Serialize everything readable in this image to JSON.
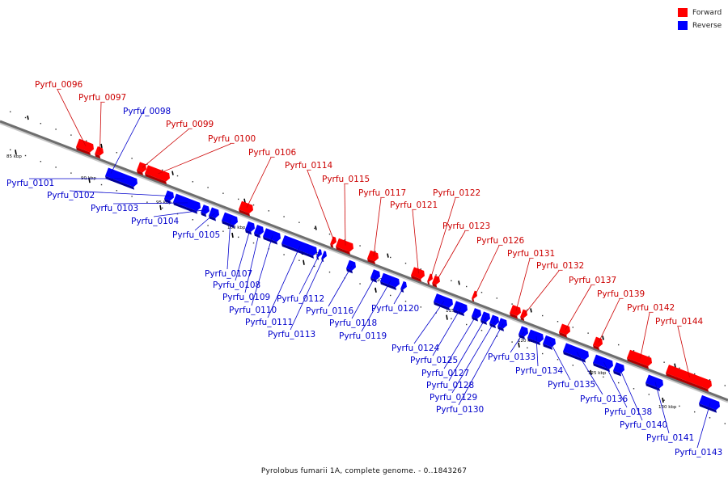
{
  "legend": {
    "forward_label": "Forward",
    "reverse_label": "Reverse",
    "forward_color": "#ff0000",
    "reverse_color": "#0000ff"
  },
  "caption": "Pyrolobus fumarii 1A, complete genome. - 0..1843267",
  "ruler_labels": [
    "85 kbp",
    "90 kbp",
    "95 kbp",
    "100 kbp",
    "105 kbp",
    "110 kbp",
    "115 kbp",
    "120 kbp",
    "125 kbp",
    "130 kbp"
  ],
  "genes": [
    {
      "name": "Pyrfu_0096",
      "strand": "forward"
    },
    {
      "name": "Pyrfu_0097",
      "strand": "forward"
    },
    {
      "name": "Pyrfu_0098",
      "strand": "reverse"
    },
    {
      "name": "Pyrfu_0099",
      "strand": "forward"
    },
    {
      "name": "Pyrfu_0100",
      "strand": "forward"
    },
    {
      "name": "Pyrfu_0101",
      "strand": "reverse"
    },
    {
      "name": "Pyrfu_0102",
      "strand": "reverse"
    },
    {
      "name": "Pyrfu_0103",
      "strand": "reverse"
    },
    {
      "name": "Pyrfu_0104",
      "strand": "reverse"
    },
    {
      "name": "Pyrfu_0105",
      "strand": "reverse"
    },
    {
      "name": "Pyrfu_0106",
      "strand": "forward"
    },
    {
      "name": "Pyrfu_0107",
      "strand": "reverse"
    },
    {
      "name": "Pyrfu_0108",
      "strand": "reverse"
    },
    {
      "name": "Pyrfu_0109",
      "strand": "reverse"
    },
    {
      "name": "Pyrfu_0110",
      "strand": "reverse"
    },
    {
      "name": "Pyrfu_0111",
      "strand": "reverse"
    },
    {
      "name": "Pyrfu_0112",
      "strand": "reverse"
    },
    {
      "name": "Pyrfu_0113",
      "strand": "reverse"
    },
    {
      "name": "Pyrfu_0114",
      "strand": "forward"
    },
    {
      "name": "Pyrfu_0115",
      "strand": "forward"
    },
    {
      "name": "Pyrfu_0116",
      "strand": "reverse"
    },
    {
      "name": "Pyrfu_0117",
      "strand": "forward"
    },
    {
      "name": "Pyrfu_0118",
      "strand": "reverse"
    },
    {
      "name": "Pyrfu_0119",
      "strand": "reverse"
    },
    {
      "name": "Pyrfu_0120",
      "strand": "reverse"
    },
    {
      "name": "Pyrfu_0121",
      "strand": "forward"
    },
    {
      "name": "Pyrfu_0122",
      "strand": "forward"
    },
    {
      "name": "Pyrfu_0123",
      "strand": "forward"
    },
    {
      "name": "Pyrfu_0124",
      "strand": "reverse"
    },
    {
      "name": "Pyrfu_0125",
      "strand": "reverse"
    },
    {
      "name": "Pyrfu_0126",
      "strand": "forward"
    },
    {
      "name": "Pyrfu_0127",
      "strand": "reverse"
    },
    {
      "name": "Pyrfu_0128",
      "strand": "reverse"
    },
    {
      "name": "Pyrfu_0129",
      "strand": "reverse"
    },
    {
      "name": "Pyrfu_0130",
      "strand": "reverse"
    },
    {
      "name": "Pyrfu_0131",
      "strand": "forward"
    },
    {
      "name": "Pyrfu_0132",
      "strand": "forward"
    },
    {
      "name": "Pyrfu_0133",
      "strand": "reverse"
    },
    {
      "name": "Pyrfu_0134",
      "strand": "reverse"
    },
    {
      "name": "Pyrfu_0135",
      "strand": "reverse"
    },
    {
      "name": "Pyrfu_0136",
      "strand": "reverse"
    },
    {
      "name": "Pyrfu_0137",
      "strand": "forward"
    },
    {
      "name": "Pyrfu_0138",
      "strand": "reverse"
    },
    {
      "name": "Pyrfu_0139",
      "strand": "forward"
    },
    {
      "name": "Pyrfu_0140",
      "strand": "reverse"
    },
    {
      "name": "Pyrfu_0141",
      "strand": "reverse"
    },
    {
      "name": "Pyrfu_0142",
      "strand": "forward"
    },
    {
      "name": "Pyrfu_0143",
      "strand": "reverse"
    },
    {
      "name": "Pyrfu_0144",
      "strand": "forward"
    }
  ]
}
